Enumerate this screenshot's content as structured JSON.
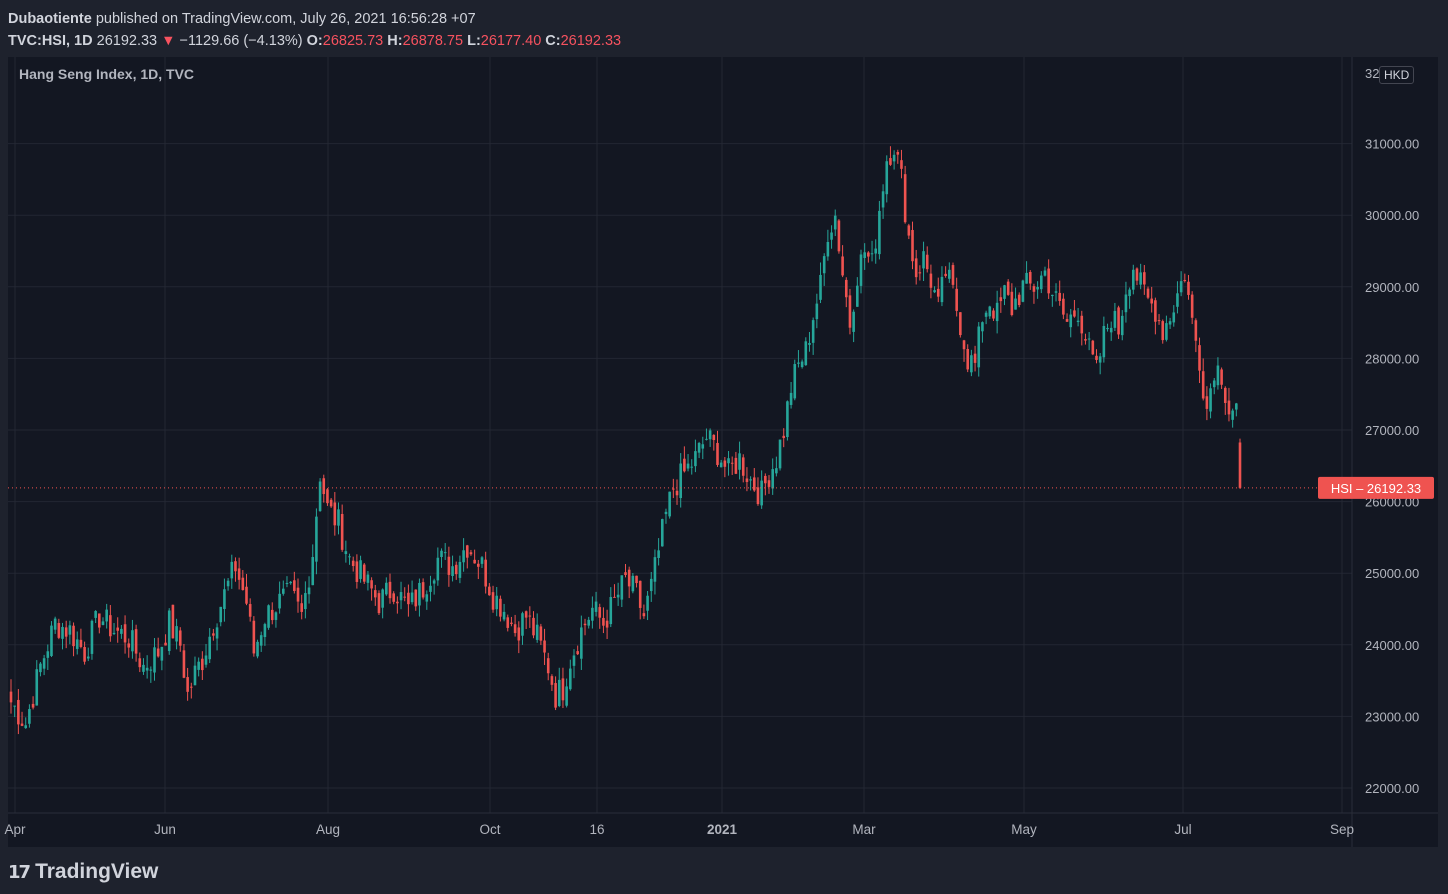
{
  "header": {
    "author": "Dubaotiente",
    "published_text": "published on TradingView.com, July 26, 2021 16:56:28 +07",
    "symbol": "TVC:HSI, 1D",
    "last": "26192.33",
    "change_arrow": "▼",
    "change": "−1129.66 (−4.13%)",
    "o_label": "O:",
    "o_value": "26825.73",
    "h_label": "H:",
    "h_value": "26878.75",
    "l_label": "L:",
    "l_value": "26177.40",
    "c_label": "C:",
    "c_value": "26192.33"
  },
  "legend": {
    "title": "Hang Seng Index, 1D, TVC"
  },
  "currency_badge": "HKD",
  "price_tag": {
    "symbol": "HSI",
    "value": "26192.33"
  },
  "footer": {
    "logo_mark": "17",
    "logo_text": "TradingView"
  },
  "colors": {
    "up": "#26a69a",
    "down": "#ef5350",
    "background": "#131722",
    "grid": "#232733",
    "text": "#b2b5be"
  },
  "chart_data": {
    "type": "candlestick",
    "symbol": "HSI",
    "timeframe": "1D",
    "ylim": [
      21600,
      32100
    ],
    "y_ticks": [
      22000,
      23000,
      24000,
      25000,
      26000,
      27000,
      28000,
      29000,
      30000,
      31000
    ],
    "y_tick_labels": [
      "22000.00",
      "23000.00",
      "24000.00",
      "25000.00",
      "26000.00",
      "27000.00",
      "28000.00",
      "29000.00",
      "30000.00",
      "31000.00"
    ],
    "y_top_label": "32",
    "x_ticks": [
      "Apr",
      "Jun",
      "Aug",
      "Oct",
      "16",
      "2021",
      "Mar",
      "May",
      "Jul",
      "Sep"
    ],
    "x_tick_bold": [
      false,
      false,
      false,
      false,
      false,
      true,
      false,
      false,
      false,
      false
    ],
    "last_price_line": 26192.33,
    "path_notes": "approximate daily close path, Apr 2020 – Jul 2021",
    "anchors": [
      [
        0,
        23200
      ],
      [
        4,
        22900
      ],
      [
        8,
        23700
      ],
      [
        12,
        24300
      ],
      [
        16,
        24200
      ],
      [
        20,
        23900
      ],
      [
        24,
        24400
      ],
      [
        28,
        24200
      ],
      [
        32,
        24100
      ],
      [
        36,
        23700
      ],
      [
        40,
        23900
      ],
      [
        43,
        24300
      ],
      [
        46,
        24000
      ],
      [
        48,
        23300
      ],
      [
        50,
        23600
      ],
      [
        52,
        23800
      ],
      [
        55,
        24300
      ],
      [
        58,
        24700
      ],
      [
        61,
        25100
      ],
      [
        64,
        24600
      ],
      [
        66,
        23900
      ],
      [
        69,
        24400
      ],
      [
        73,
        24600
      ],
      [
        76,
        24700
      ],
      [
        79,
        24400
      ],
      [
        82,
        25300
      ],
      [
        84,
        26400
      ],
      [
        86,
        25900
      ],
      [
        89,
        25700
      ],
      [
        92,
        25200
      ],
      [
        96,
        24900
      ],
      [
        100,
        24600
      ],
      [
        104,
        24800
      ],
      [
        108,
        24500
      ],
      [
        112,
        24800
      ],
      [
        116,
        25200
      ],
      [
        120,
        25100
      ],
      [
        124,
        25400
      ],
      [
        128,
        25100
      ],
      [
        131,
        24700
      ],
      [
        134,
        24500
      ],
      [
        137,
        24200
      ],
      [
        140,
        24400
      ],
      [
        143,
        24100
      ],
      [
        146,
        23700
      ],
      [
        148,
        23300
      ],
      [
        150,
        23400
      ],
      [
        152,
        23800
      ],
      [
        155,
        24200
      ],
      [
        158,
        24500
      ],
      [
        161,
        24300
      ],
      [
        164,
        24600
      ],
      [
        167,
        24900
      ],
      [
        170,
        24700
      ],
      [
        172,
        24400
      ],
      [
        174,
        24800
      ],
      [
        176,
        25300
      ],
      [
        178,
        25800
      ],
      [
        180,
        26200
      ],
      [
        183,
        26400
      ],
      [
        186,
        26600
      ],
      [
        189,
        26900
      ],
      [
        192,
        26700
      ],
      [
        195,
        26400
      ],
      [
        198,
        26600
      ],
      [
        201,
        26300
      ],
      [
        204,
        26100
      ],
      [
        206,
        26400
      ],
      [
        208,
        26600
      ],
      [
        210,
        27000
      ],
      [
        212,
        27600
      ],
      [
        214,
        27900
      ],
      [
        216,
        28100
      ],
      [
        218,
        28600
      ],
      [
        220,
        29000
      ],
      [
        222,
        29800
      ],
      [
        224,
        30000
      ],
      [
        226,
        29200
      ],
      [
        228,
        28500
      ],
      [
        230,
        29200
      ],
      [
        232,
        29500
      ],
      [
        234,
        29300
      ],
      [
        236,
        30100
      ],
      [
        238,
        30800
      ],
      [
        240,
        31000
      ],
      [
        242,
        30500
      ],
      [
        244,
        29700
      ],
      [
        246,
        29200
      ],
      [
        248,
        29400
      ],
      [
        250,
        29100
      ],
      [
        252,
        28700
      ],
      [
        254,
        29200
      ],
      [
        256,
        28900
      ],
      [
        258,
        28500
      ],
      [
        260,
        28000
      ],
      [
        262,
        27900
      ],
      [
        264,
        28600
      ],
      [
        266,
        28800
      ],
      [
        268,
        28600
      ],
      [
        270,
        28900
      ],
      [
        272,
        28700
      ],
      [
        275,
        29000
      ],
      [
        278,
        29000
      ],
      [
        281,
        29200
      ],
      [
        284,
        28800
      ],
      [
        287,
        28500
      ],
      [
        290,
        28700
      ],
      [
        293,
        28100
      ],
      [
        295,
        27800
      ],
      [
        297,
        28300
      ],
      [
        299,
        28600
      ],
      [
        301,
        28400
      ],
      [
        303,
        29000
      ],
      [
        305,
        29300
      ],
      [
        307,
        29000
      ],
      [
        309,
        28800
      ],
      [
        311,
        28700
      ],
      [
        313,
        28400
      ],
      [
        315,
        28600
      ],
      [
        317,
        28900
      ],
      [
        319,
        29200
      ],
      [
        321,
        28500
      ],
      [
        323,
        28000
      ],
      [
        325,
        27300
      ],
      [
        327,
        27900
      ],
      [
        329,
        27800
      ],
      [
        331,
        27300
      ],
      [
        333,
        27300
      ],
      [
        334,
        26192.33
      ]
    ]
  }
}
